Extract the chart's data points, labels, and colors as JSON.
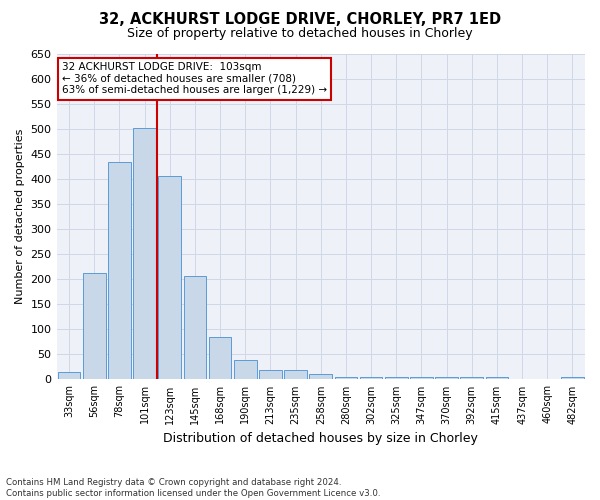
{
  "title_line1": "32, ACKHURST LODGE DRIVE, CHORLEY, PR7 1ED",
  "title_line2": "Size of property relative to detached houses in Chorley",
  "xlabel": "Distribution of detached houses by size in Chorley",
  "ylabel": "Number of detached properties",
  "categories": [
    "33sqm",
    "56sqm",
    "78sqm",
    "101sqm",
    "123sqm",
    "145sqm",
    "168sqm",
    "190sqm",
    "213sqm",
    "235sqm",
    "258sqm",
    "280sqm",
    "302sqm",
    "325sqm",
    "347sqm",
    "370sqm",
    "392sqm",
    "415sqm",
    "437sqm",
    "460sqm",
    "482sqm"
  ],
  "values": [
    15,
    212,
    435,
    503,
    407,
    207,
    85,
    38,
    18,
    18,
    10,
    5,
    4,
    4,
    4,
    4,
    4,
    4,
    1,
    1,
    4
  ],
  "bar_color": "#c8d8e8",
  "bar_edge_color": "#5b9bd5",
  "grid_color": "#d0d8e8",
  "vline_index": 3,
  "vline_color": "#cc0000",
  "annotation_text": "32 ACKHURST LODGE DRIVE:  103sqm\n← 36% of detached houses are smaller (708)\n63% of semi-detached houses are larger (1,229) →",
  "annotation_box_color": "#ffffff",
  "annotation_box_edge_color": "#cc0000",
  "ylim": [
    0,
    650
  ],
  "yticks": [
    0,
    50,
    100,
    150,
    200,
    250,
    300,
    350,
    400,
    450,
    500,
    550,
    600,
    650
  ],
  "footer_line1": "Contains HM Land Registry data © Crown copyright and database right 2024.",
  "footer_line2": "Contains public sector information licensed under the Open Government Licence v3.0.",
  "bg_color": "#ffffff",
  "plot_bg_color": "#eef2f8"
}
